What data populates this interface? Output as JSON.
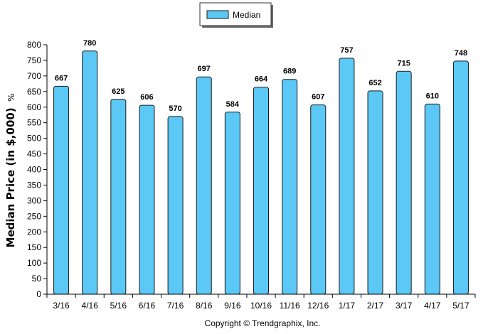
{
  "chart_data": {
    "type": "bar",
    "categories": [
      "3/16",
      "4/16",
      "5/16",
      "6/16",
      "7/16",
      "8/16",
      "9/16",
      "10/16",
      "11/16",
      "12/16",
      "1/17",
      "2/17",
      "3/17",
      "4/17",
      "5/17"
    ],
    "series": [
      {
        "name": "Median",
        "values": [
          667,
          780,
          625,
          606,
          570,
          697,
          584,
          664,
          689,
          607,
          757,
          652,
          715,
          610,
          748
        ]
      }
    ],
    "ylabel": "Median Price (in $,000)",
    "ylabel_suffix": "%",
    "ylim": [
      0,
      800
    ],
    "yticks": [
      0,
      50,
      100,
      150,
      200,
      250,
      300,
      350,
      400,
      450,
      500,
      550,
      600,
      650,
      700,
      750,
      800
    ],
    "grid": false,
    "legend_position": "top-center",
    "data_labels": true,
    "bar_color": "#5BC8F5",
    "bar_stroke": "#1a1a1a",
    "footer": "Copyright © Trendgraphix, Inc."
  }
}
